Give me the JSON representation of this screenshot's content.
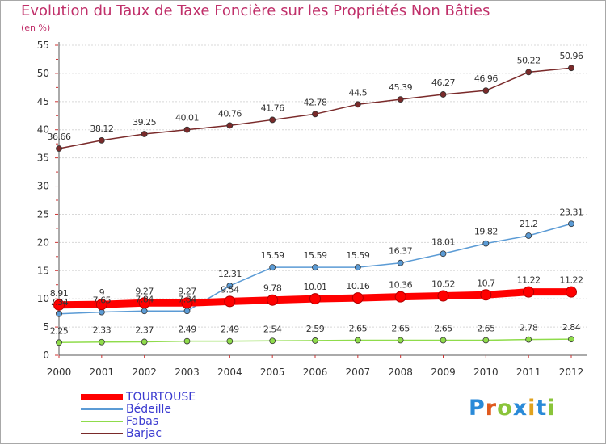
{
  "chart_data": {
    "type": "line",
    "title": "Evolution du Taux de Taxe Foncière sur les Propriétés Non Bâties",
    "subtitle": "(en %)",
    "xlabel": "",
    "ylabel": "",
    "x": [
      "2000",
      "2001",
      "2002",
      "2003",
      "2004",
      "2005",
      "2006",
      "2007",
      "2008",
      "2009",
      "2010",
      "2011",
      "2012"
    ],
    "ylim": [
      0,
      55
    ],
    "yticks": [
      "0",
      "5",
      "10",
      "15",
      "20",
      "25",
      "30",
      "35",
      "40",
      "45",
      "50",
      "55"
    ],
    "grid": "horizontal",
    "legend_position": "bottom-left",
    "series": [
      {
        "name": "TOURTOUSE",
        "color": "#ff0000",
        "values": [
          8.91,
          9,
          9.27,
          9.27,
          9.54,
          9.78,
          10.01,
          10.16,
          10.36,
          10.52,
          10.7,
          11.22,
          11.22
        ],
        "labels": [
          "8.91",
          "9",
          "9.27",
          "9.27",
          "9.54",
          "9.78",
          "10.01",
          "10.16",
          "10.36",
          "10.52",
          "10.7",
          "11.22",
          "11.22"
        ]
      },
      {
        "name": "Bédeille",
        "color": "#5b9bd5",
        "values": [
          7.34,
          7.65,
          7.84,
          7.84,
          12.31,
          15.59,
          15.59,
          15.59,
          16.37,
          18.01,
          19.82,
          21.2,
          23.31
        ],
        "labels": [
          "7.34",
          "7.65",
          "7.84",
          "7.84",
          "12.31",
          "15.59",
          "15.59",
          "15.59",
          "16.37",
          "18.01",
          "19.82",
          "21.2",
          "23.31"
        ]
      },
      {
        "name": "Fabas",
        "color": "#8fdc4b",
        "values": [
          2.25,
          2.33,
          2.37,
          2.49,
          2.49,
          2.54,
          2.59,
          2.65,
          2.65,
          2.65,
          2.65,
          2.78,
          2.84
        ],
        "labels": [
          "2.25",
          "2.33",
          "2.37",
          "2.49",
          "2.49",
          "2.54",
          "2.59",
          "2.65",
          "2.65",
          "2.65",
          "2.65",
          "2.78",
          "2.84"
        ]
      },
      {
        "name": "Barjac",
        "color": "#7a2a2a",
        "values": [
          36.66,
          38.12,
          39.25,
          40.01,
          40.76,
          41.76,
          42.78,
          44.5,
          45.39,
          46.27,
          46.96,
          50.22,
          50.96
        ],
        "labels": [
          "36.66",
          "38.12",
          "39.25",
          "40.01",
          "40.76",
          "41.76",
          "42.78",
          "44.5",
          "45.39",
          "46.27",
          "46.96",
          "50.22",
          "50.96"
        ]
      }
    ]
  },
  "logo": {
    "text": "Proxiti",
    "colors": [
      "#2a8ad8",
      "#e05a1e",
      "#8ac43a",
      "#2a8ad8",
      "#e0a21e",
      "#2a8ad8",
      "#8ac43a"
    ]
  }
}
